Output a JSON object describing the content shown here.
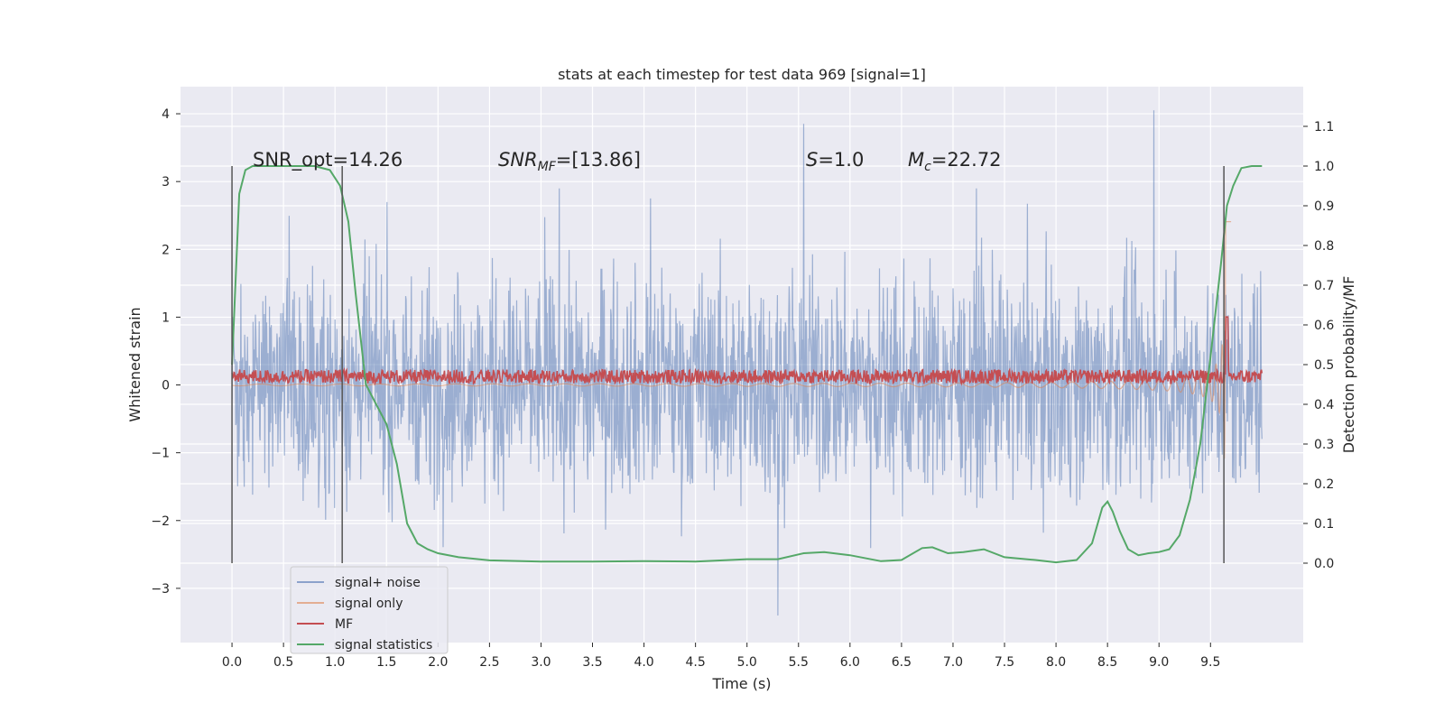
{
  "chart_data": {
    "type": "line",
    "title": "stats at each timestep for test data 969 [signal=1]",
    "xlabel": "Time (s)",
    "ylabel_left": "Whitened strain",
    "ylabel_right": "Detection probability/MF",
    "xlim": [
      -0.5,
      10.4
    ],
    "ylim_left": [
      -3.8,
      4.4
    ],
    "ylim_right": [
      -0.2,
      1.2
    ],
    "x_ticks": [
      0.0,
      0.5,
      1.0,
      1.5,
      2.0,
      2.5,
      3.0,
      3.5,
      4.0,
      4.5,
      5.0,
      5.5,
      6.0,
      6.5,
      7.0,
      7.5,
      8.0,
      8.5,
      9.0,
      9.5
    ],
    "x_tick_labels": [
      "0.0",
      "0.5",
      "1.0",
      "1.5",
      "2.0",
      "2.5",
      "3.0",
      "3.5",
      "4.0",
      "4.5",
      "5.0",
      "5.5",
      "6.0",
      "6.5",
      "7.0",
      "7.5",
      "8.0",
      "8.5",
      "9.0",
      "9.5"
    ],
    "y_left_ticks": [
      -3,
      -2,
      -1,
      0,
      1,
      2,
      3,
      4
    ],
    "y_left_tick_labels": [
      "−3",
      "−2",
      "−1",
      "0",
      "1",
      "2",
      "3",
      "4"
    ],
    "y_right_ticks": [
      0.0,
      0.1,
      0.2,
      0.3,
      0.4,
      0.5,
      0.6,
      0.7,
      0.8,
      0.9,
      1.0,
      1.1
    ],
    "y_right_tick_labels": [
      "0.0",
      "0.1",
      "0.2",
      "0.3",
      "0.4",
      "0.5",
      "0.6",
      "0.7",
      "0.8",
      "0.9",
      "1.0",
      "1.1"
    ],
    "grid": true,
    "legend_position": "lower-left",
    "series": [
      {
        "name": "signal+ noise",
        "color": "#4c72b0",
        "axis": "left",
        "description_values": {
          "x_range": [
            0.0,
            10.0
          ],
          "typical_band": [
            -1.6,
            1.6
          ],
          "max": 4.05,
          "min": -3.45
        }
      },
      {
        "name": "signal only",
        "color": "#dd8452",
        "axis": "left",
        "description_values": {
          "x_range": [
            0.0,
            9.7
          ],
          "chirp_peak_time": 9.65,
          "chirp_peak_amplitude": 2.6
        }
      },
      {
        "name": "MF",
        "color": "#c44e52",
        "axis": "right",
        "description_values": {
          "x_range": [
            0.0,
            10.0
          ],
          "baseline": 0.47,
          "peak_time": 9.66,
          "peak_value": 0.62
        }
      },
      {
        "name": "signal statistics",
        "color": "#55a868",
        "axis": "right",
        "x": [
          0.0,
          0.07,
          0.13,
          0.2,
          0.3,
          0.5,
          0.8,
          0.95,
          1.05,
          1.13,
          1.2,
          1.3,
          1.4,
          1.5,
          1.6,
          1.7,
          1.8,
          1.9,
          2.0,
          2.2,
          2.5,
          3.0,
          3.5,
          4.0,
          4.5,
          5.0,
          5.3,
          5.55,
          5.75,
          6.0,
          6.3,
          6.5,
          6.7,
          6.8,
          6.95,
          7.1,
          7.3,
          7.5,
          7.8,
          8.0,
          8.2,
          8.35,
          8.45,
          8.5,
          8.55,
          8.62,
          8.7,
          8.8,
          8.9,
          9.0,
          9.1,
          9.2,
          9.3,
          9.4,
          9.5,
          9.6,
          9.66,
          9.72,
          9.8,
          9.9,
          10.0
        ],
        "y": [
          0.5,
          0.93,
          0.99,
          1.0,
          1.0,
          1.0,
          1.0,
          0.99,
          0.95,
          0.86,
          0.68,
          0.45,
          0.4,
          0.35,
          0.25,
          0.1,
          0.05,
          0.035,
          0.025,
          0.015,
          0.007,
          0.004,
          0.004,
          0.005,
          0.004,
          0.01,
          0.01,
          0.025,
          0.028,
          0.02,
          0.005,
          0.008,
          0.038,
          0.04,
          0.025,
          0.028,
          0.035,
          0.015,
          0.008,
          0.002,
          0.008,
          0.05,
          0.14,
          0.155,
          0.13,
          0.08,
          0.035,
          0.02,
          0.025,
          0.028,
          0.035,
          0.07,
          0.16,
          0.3,
          0.52,
          0.75,
          0.9,
          0.95,
          0.995,
          1.0,
          1.0
        ]
      }
    ],
    "vertical_lines": [
      0.0,
      1.07,
      9.63
    ],
    "annotations": {
      "snr_opt": "SNR_opt=14.26",
      "snr_mf_prefix": "SNR",
      "snr_mf_sub": "MF",
      "snr_mf_suffix": "=[13.86]",
      "s_prefix": "S",
      "s_suffix": "=1.0",
      "mc_prefix": "M",
      "mc_sub": "c",
      "mc_suffix": "=22.72"
    }
  }
}
